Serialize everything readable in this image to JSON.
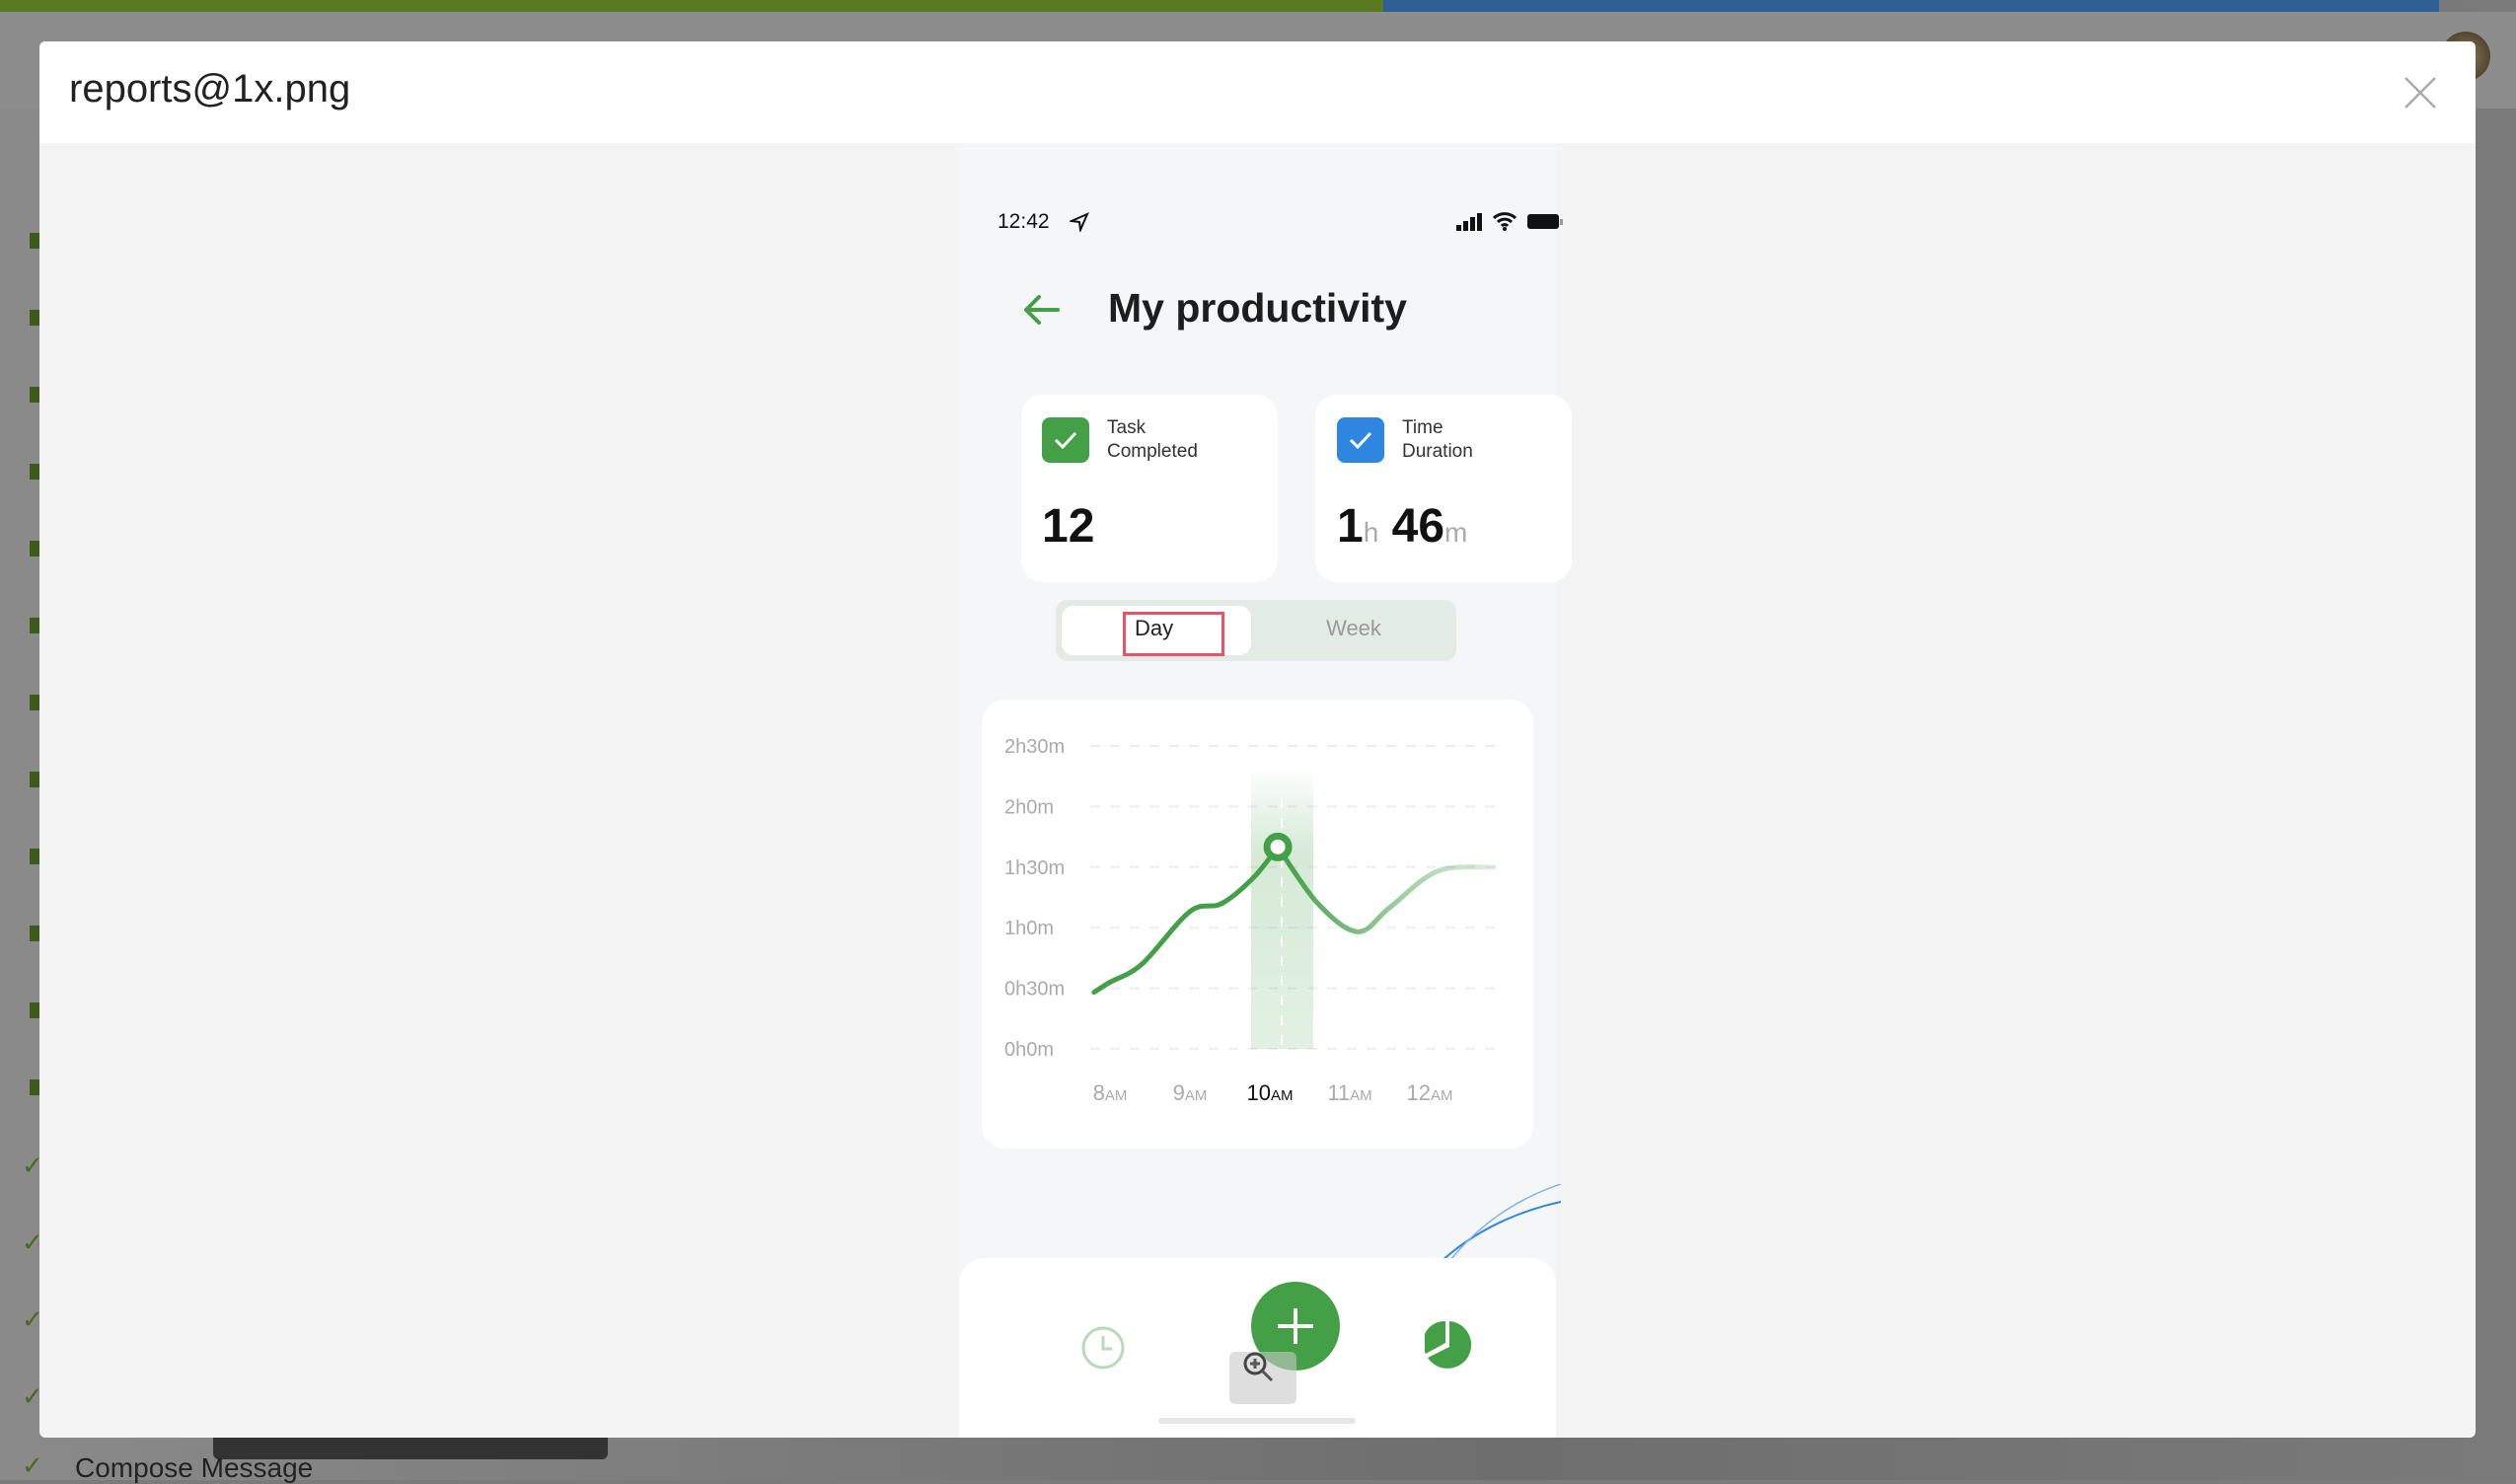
{
  "background": {
    "compose_label": "Compose Message"
  },
  "modal": {
    "title": "reports@1x.png",
    "close_icon": "close-icon"
  },
  "phone": {
    "status_time": "12:42",
    "title": "My productivity",
    "cards": [
      {
        "label_line1": "Task",
        "label_line2": "Completed",
        "value": "12",
        "color": "#43a047"
      },
      {
        "label_line1": "Time",
        "label_line2": "Duration",
        "hours": "1",
        "hours_unit": "h",
        "minutes": "46",
        "minutes_unit": "m",
        "color": "#2f86e0"
      }
    ],
    "toggle": {
      "day": "Day",
      "week": "Week",
      "selected": "Day"
    },
    "accent": "#43a047"
  },
  "chart_data": {
    "type": "line",
    "y_ticks": [
      "0h0m",
      "0h30m",
      "1h0m",
      "1h30m",
      "2h0m",
      "2h30m"
    ],
    "ylim_minutes": [
      0,
      150
    ],
    "x_ticks": [
      {
        "num": "8",
        "suffix": "AM"
      },
      {
        "num": "9",
        "suffix": "AM"
      },
      {
        "num": "10",
        "suffix": "AM",
        "active": true
      },
      {
        "num": "11",
        "suffix": "AM"
      },
      {
        "num": "12",
        "suffix": "AM"
      }
    ],
    "grid": true,
    "highlighted_x": "10AM",
    "points": [
      {
        "hour": 7.8,
        "minutes": 28
      },
      {
        "hour": 8.0,
        "minutes": 33
      },
      {
        "hour": 8.4,
        "minutes": 42
      },
      {
        "hour": 9.0,
        "minutes": 68
      },
      {
        "hour": 9.4,
        "minutes": 72
      },
      {
        "hour": 9.8,
        "minutes": 85
      },
      {
        "hour": 10.1,
        "minutes": 100
      },
      {
        "hour": 10.6,
        "minutes": 72
      },
      {
        "hour": 11.1,
        "minutes": 58
      },
      {
        "hour": 11.5,
        "minutes": 70
      },
      {
        "hour": 12.1,
        "minutes": 88
      },
      {
        "hour": 12.8,
        "minutes": 90
      }
    ],
    "marker_index": 6
  }
}
